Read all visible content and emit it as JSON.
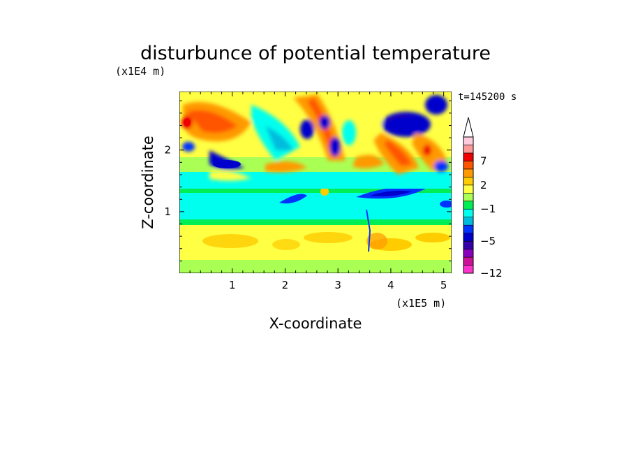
{
  "chart_data": {
    "type": "heatmap",
    "title": "disturbunce of potential temperature",
    "xlabel": "X-coordinate",
    "ylabel": "Z-coordinate",
    "x_unit": "(x1E5 m)",
    "y_unit": "(x1E4 m)",
    "time_label": "t=145200 s",
    "xlim": [
      0,
      5.15
    ],
    "ylim": [
      0,
      2.95
    ],
    "x_ticks": [
      1,
      2,
      3,
      4,
      5
    ],
    "y_ticks": [
      1,
      2
    ],
    "x_tick_labels": [
      "1",
      "2",
      "3",
      "4",
      "5"
    ],
    "y_tick_labels": [
      "1",
      "2"
    ],
    "colorbar": {
      "levels": [
        -12,
        -11,
        -9,
        -7,
        -5,
        -4,
        -3,
        -2,
        -1,
        0,
        1,
        2,
        3,
        5,
        7,
        9,
        11
      ],
      "labels": [
        {
          "value": -12,
          "text": "−12"
        },
        {
          "value": -5,
          "text": "−5"
        },
        {
          "value": -1,
          "text": "−1"
        },
        {
          "value": 2,
          "text": "2"
        },
        {
          "value": 7,
          "text": "7"
        }
      ],
      "colors": [
        "#ff33cc",
        "#cc1199",
        "#8800bb",
        "#3300aa",
        "#0000cc",
        "#0033ff",
        "#00bbdd",
        "#00ffee",
        "#00ee55",
        "#aaff55",
        "#ffff44",
        "#ffcc00",
        "#ff9900",
        "#ff5500",
        "#ee0000",
        "#ff9999",
        "#ffccdd"
      ],
      "extend_top_color": "#ffffff"
    }
  }
}
